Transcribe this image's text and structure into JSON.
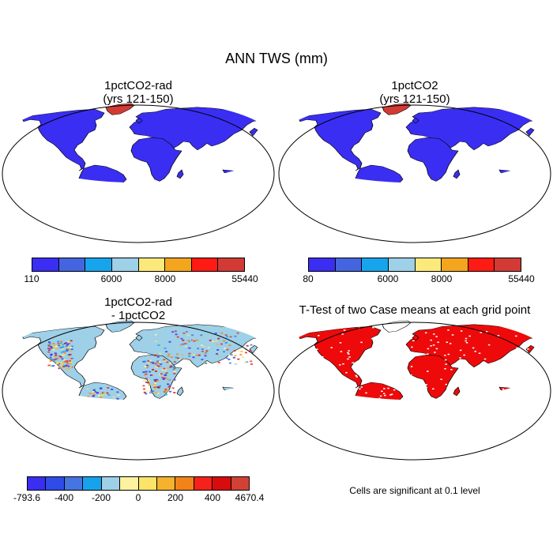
{
  "figure": {
    "title": "ANN TWS (mm)"
  },
  "panels": {
    "tl": {
      "title_line1": "1pctCO2-rad",
      "title_line2": "(yrs 121-150)"
    },
    "tr": {
      "title_line1": "1pctCO2",
      "title_line2": "(yrs 121-150)"
    },
    "bl": {
      "title_line1": "1pctCO2-rad",
      "title_line2": "- 1pctCO2"
    },
    "br": {
      "title_line1": "T-Test of two Case means at each grid point",
      "note": "Cells are significant at 0.1 level"
    }
  },
  "colorbars": {
    "tl": {
      "colors": [
        "#3a2ef2",
        "#4565e0",
        "#16a5ec",
        "#9ed0e8",
        "#fbe97c",
        "#f4a51e",
        "#fd1b13",
        "#d23a35"
      ],
      "labels": {
        "l0": "110",
        "l1": "6000",
        "l2": "8000",
        "l3": "55440"
      }
    },
    "tr": {
      "colors": [
        "#3a2ef2",
        "#4565e0",
        "#16a5ec",
        "#9ed0e8",
        "#fbe97c",
        "#f4a51e",
        "#fd1b13",
        "#d23a35"
      ],
      "labels": {
        "l0": "80",
        "l1": "6000",
        "l2": "8000",
        "l3": "55440"
      }
    },
    "bl": {
      "colors": [
        "#3a2ef2",
        "#2f4bea",
        "#4575e0",
        "#17a3ec",
        "#9ed0e8",
        "#fdf29f",
        "#fbe468",
        "#f5b22d",
        "#f38318",
        "#f4221a",
        "#d80c0c",
        "#d24136"
      ],
      "labels": {
        "l0": "-793.6",
        "l1": "-400",
        "l2": "-200",
        "l3": "0",
        "l4": "200",
        "l5": "400",
        "l6": "4670.4"
      }
    }
  },
  "map_colors": {
    "ocean": "#ffffff",
    "outline": "#000000",
    "land_low": "#3a2ef2",
    "land_high": "#d23a35",
    "diff_base": "#9ed0e8",
    "diff_pos": "#fbe97c",
    "signif": "#ee0a0a"
  }
}
